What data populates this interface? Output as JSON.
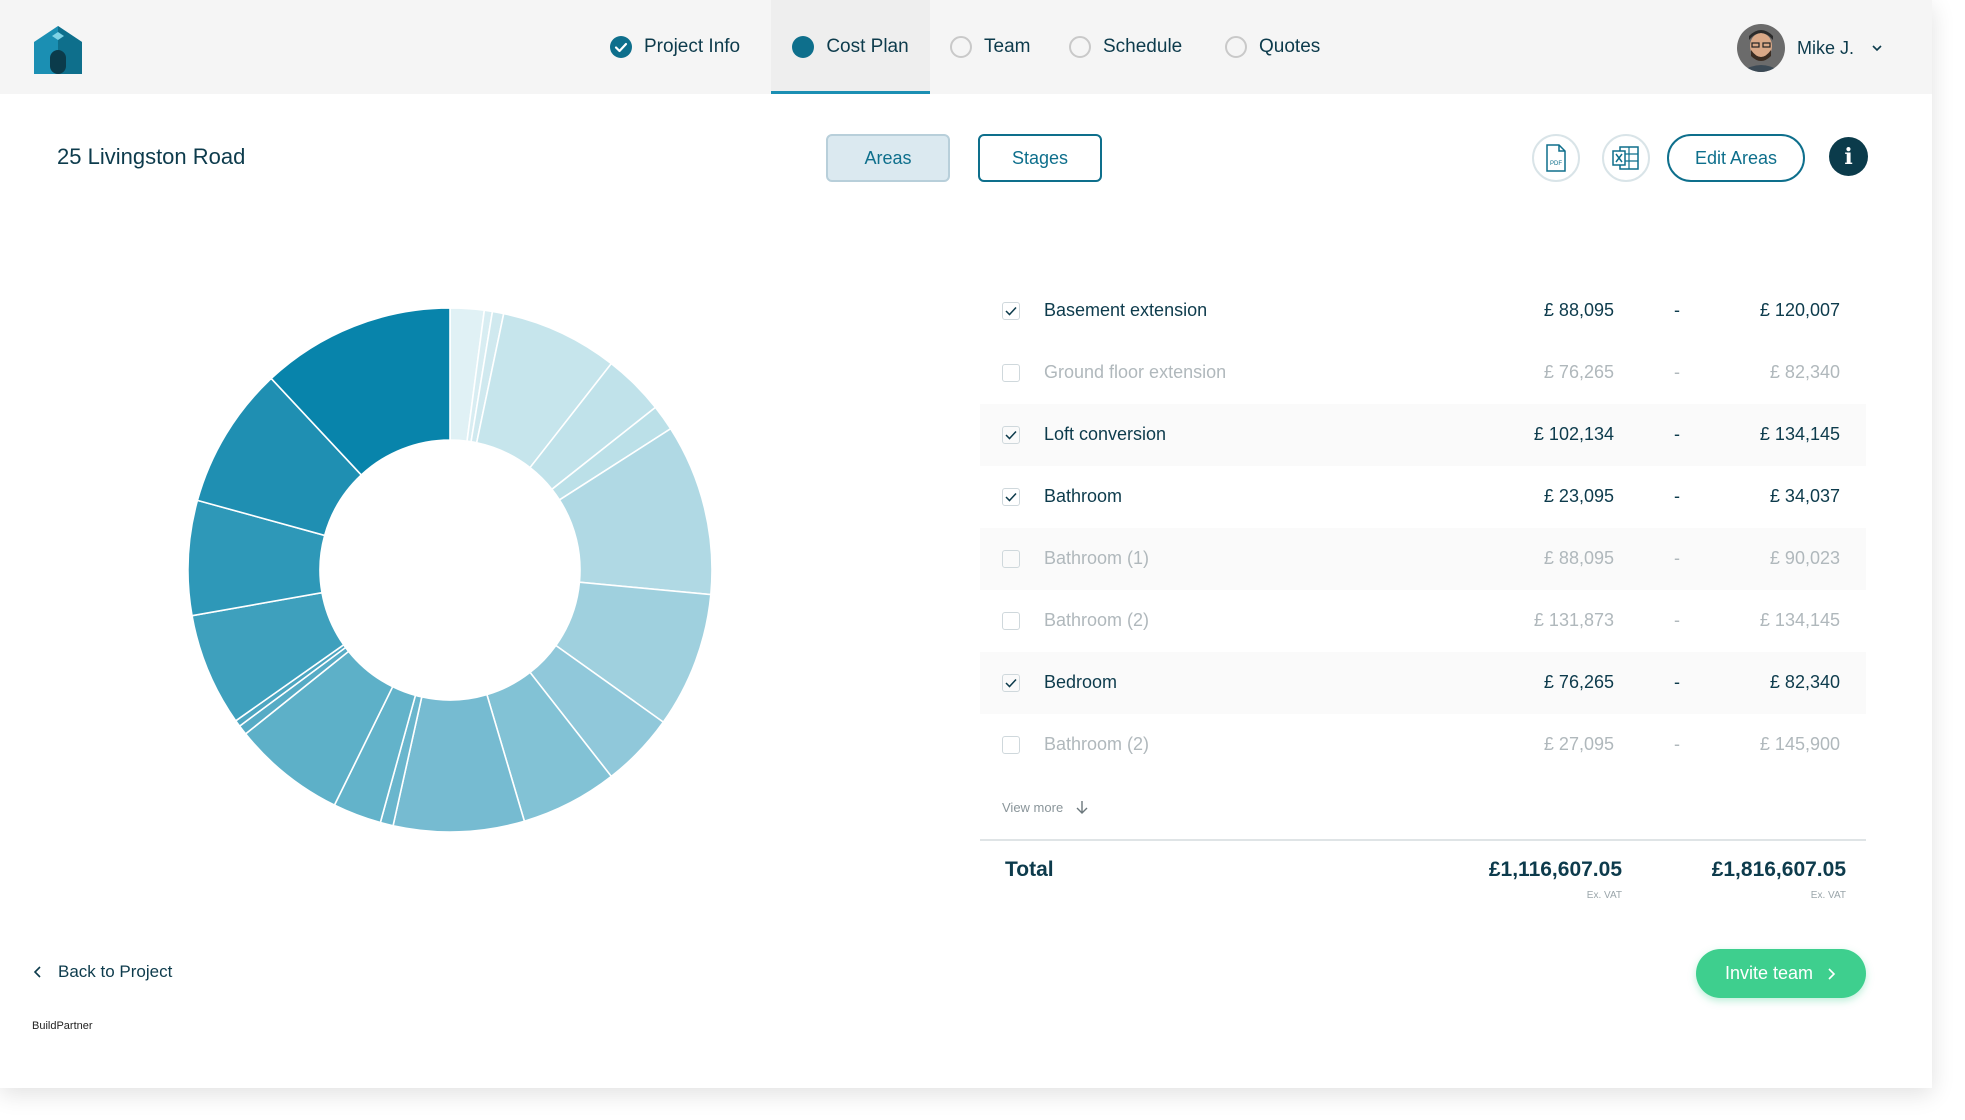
{
  "nav": {
    "tabs": [
      {
        "label": "Project Info",
        "state": "done"
      },
      {
        "label": "Cost Plan",
        "state": "active"
      },
      {
        "label": "Team",
        "state": "todo"
      },
      {
        "label": "Schedule",
        "state": "todo"
      },
      {
        "label": "Quotes",
        "state": "todo"
      }
    ],
    "user_name": "Mike J."
  },
  "project_title": "25 Livingston Road",
  "toggle": {
    "areas": "Areas",
    "stages": "Stages"
  },
  "toolbar": {
    "pdf_icon": "pdf-export-icon",
    "excel_icon": "excel-export-icon",
    "edit_areas": "Edit Areas",
    "info": "i"
  },
  "colors": {
    "accent": "#0e6f8c",
    "dark": "#0b3b4b",
    "invite": "#3ecf8e"
  },
  "areas": [
    {
      "name": "Basement extension",
      "low": "£ 88,095",
      "dash": "-",
      "high": "£ 120,007",
      "checked": true
    },
    {
      "name": "Ground floor extension",
      "low": "£ 76,265",
      "dash": "-",
      "high": "£ 82,340",
      "checked": false
    },
    {
      "name": "Loft conversion",
      "low": "£ 102,134",
      "dash": "-",
      "high": "£ 134,145",
      "checked": true
    },
    {
      "name": "Bathroom",
      "low": "£ 23,095",
      "dash": "-",
      "high": "£ 34,037",
      "checked": true
    },
    {
      "name": "Bathroom (1)",
      "low": "£ 88,095",
      "dash": "-",
      "high": "£ 90,023",
      "checked": false
    },
    {
      "name": "Bathroom (2)",
      "low": "£ 131,873",
      "dash": "-",
      "high": "£ 134,145",
      "checked": false
    },
    {
      "name": "Bedroom",
      "low": "£ 76,265",
      "dash": "-",
      "high": "£ 82,340",
      "checked": true
    },
    {
      "name": "Bathroom (2)",
      "low": "£ 27,095",
      "dash": "-",
      "high": "£ 145,900",
      "checked": false
    }
  ],
  "view_more": "View more",
  "total": {
    "label": "Total",
    "low": "£1,116,607.05",
    "high": "£1,816,607.05",
    "low_note": "Ex. VAT",
    "high_note": "Ex. VAT"
  },
  "back_link": "Back to Project",
  "brand": "BuildPartner",
  "invite_button": "Invite team",
  "donut": {
    "segments": [
      2.1,
      0.5,
      0.7,
      7.3,
      3.8,
      1.6,
      10.6,
      8.4,
      4.6,
      6.0,
      8.1,
      0.8,
      3.0,
      7.0,
      0.6,
      0.4,
      7.0,
      7.1,
      8.8,
      12.0
    ],
    "colors": [
      "#e0f1f5",
      "#d8edf2",
      "#d0e9ef",
      "#c6e5ec",
      "#c0e2ea",
      "#bbe0e8",
      "#b0d9e4",
      "#9fd0de",
      "#90c8da",
      "#82c2d5",
      "#76bbd1",
      "#6ab6cd",
      "#63b3ca",
      "#5db0c8",
      "#56abc5",
      "#4da6c1",
      "#3ea0bd",
      "#2e98b8",
      "#1f8fb2",
      "#0884ab"
    ]
  }
}
